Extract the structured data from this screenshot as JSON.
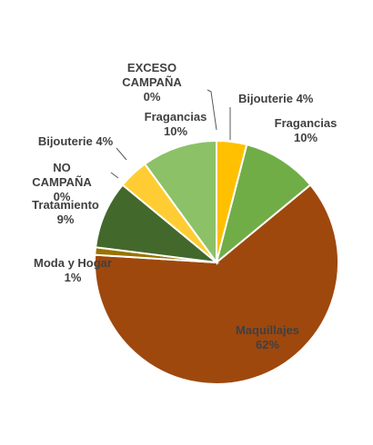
{
  "chart_data": {
    "type": "pie",
    "title": "",
    "start_angle_deg": 0,
    "direction": "clockwise",
    "slices": [
      {
        "label": "Bijouterie 4%",
        "value": 4,
        "color": "#FFC000"
      },
      {
        "label": "Fragancias\n10%",
        "value": 10,
        "color": "#70AD47"
      },
      {
        "label": "Maquillajes\n62%",
        "value": 62,
        "color": "#9E480E"
      },
      {
        "label": "Moda y Hogar\n1%",
        "value": 1,
        "color": "#997300"
      },
      {
        "label": "Tratamiento\n9%",
        "value": 9,
        "color": "#43682B"
      },
      {
        "label": "NO\nCAMPAÑA\n0%",
        "value": 0,
        "color": "#264478"
      },
      {
        "label": "Bijouterie 4%",
        "value": 4,
        "color": "#FFCD33"
      },
      {
        "label": "Fragancias\n10%",
        "value": 10,
        "color": "#8CC168"
      },
      {
        "label": "EXCESO\nCAMPAÑA\n0%",
        "value": 0,
        "color": "#C9A700"
      }
    ]
  }
}
